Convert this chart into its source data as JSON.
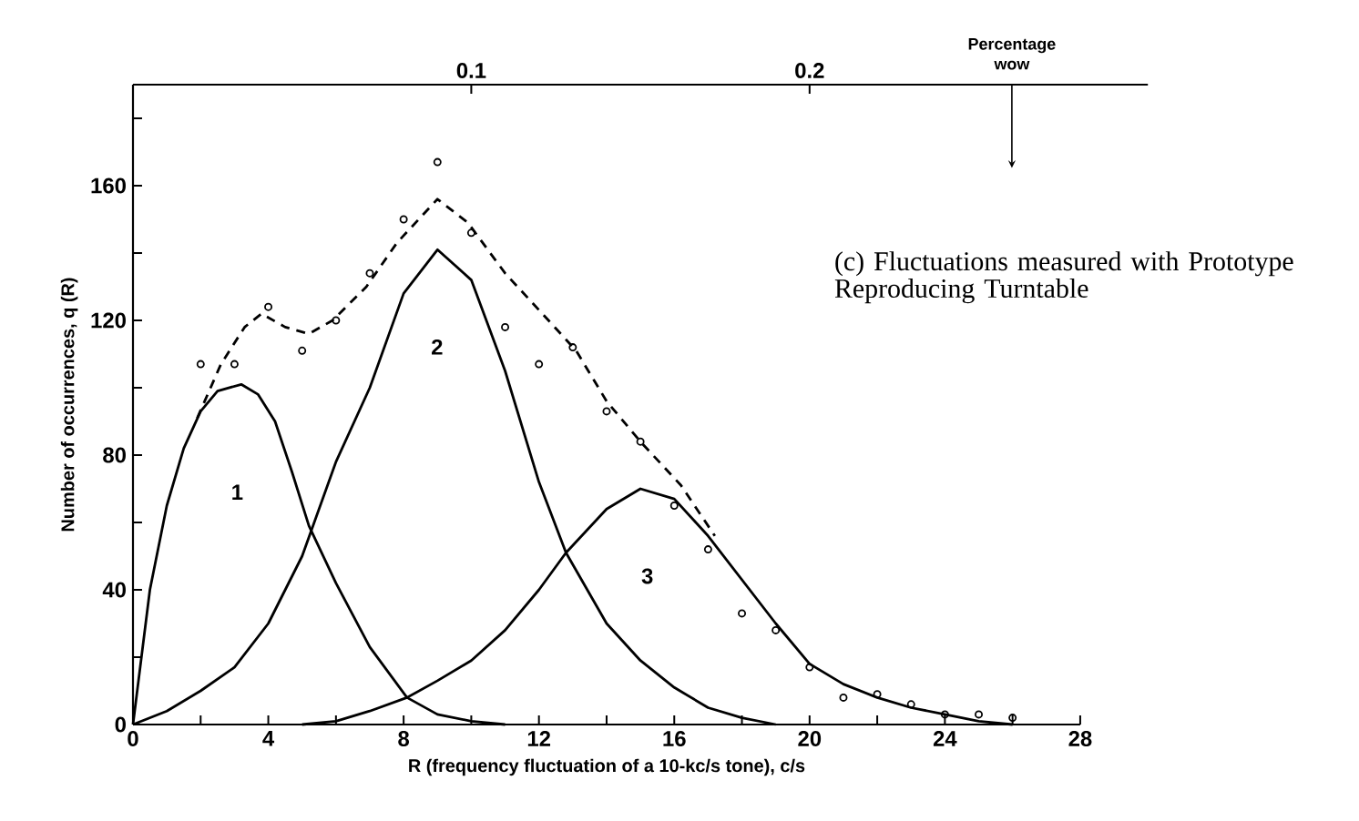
{
  "chart_data": {
    "type": "line",
    "xlabel": "R (frequency fluctuation of a 10-kc/s tone), c/s",
    "ylabel": "Number of occurrences, q (R)",
    "x2label": "Percentage wow",
    "xlim": [
      0,
      28
    ],
    "ylim": [
      0,
      190
    ],
    "x2lim": [
      0,
      0.3
    ],
    "xticks": [
      0,
      {
        "value": 2,
        "label": null
      },
      4,
      {
        "value": 6,
        "label": null
      },
      8,
      {
        "value": 10,
        "label": null
      },
      12,
      {
        "value": 14,
        "label": null
      },
      16,
      {
        "value": 18,
        "label": null
      },
      20,
      {
        "value": 22,
        "label": null
      },
      24,
      {
        "value": 26,
        "label": null
      },
      28
    ],
    "yticks": [
      0,
      {
        "value": 20,
        "label": null
      },
      40,
      {
        "value": 60,
        "label": null
      },
      80,
      {
        "value": 100,
        "label": null
      },
      120,
      {
        "value": 140,
        "label": null
      },
      160,
      {
        "value": 180,
        "label": null
      }
    ],
    "x2ticks": [
      0.1,
      0.2
    ],
    "series": [
      {
        "type": "scatter",
        "marker": "circle",
        "color": "#000000",
        "x": [
          2,
          3,
          4,
          5,
          6,
          7,
          8,
          9,
          10,
          11,
          12,
          13,
          14,
          15,
          16,
          17,
          18,
          19,
          20,
          21,
          22,
          23,
          24,
          25,
          26
        ],
        "values": [
          107,
          107,
          124,
          111,
          120,
          134,
          150,
          167,
          146,
          118,
          107,
          112,
          93,
          84,
          65,
          52,
          33,
          28,
          17,
          8,
          9,
          6,
          3,
          3,
          2
        ]
      },
      {
        "line_style": "dashed",
        "color": "#000000",
        "x": [
          1.9,
          2.6,
          3.3,
          3.8,
          4.5,
          5.2,
          5.9,
          6.9,
          7.8,
          9.0,
          9.9,
          11.0,
          12.1,
          13.1,
          14.0,
          15.0,
          16.2,
          17.2
        ],
        "values": [
          91,
          107,
          118,
          122,
          118,
          116,
          120,
          130,
          143,
          156,
          149,
          134,
          122,
          111,
          96,
          84,
          71,
          56
        ]
      },
      {
        "line_style": "solid",
        "color": "#000000",
        "x": [
          0,
          0.5,
          1,
          1.5,
          2,
          2.5,
          3.2,
          3.7,
          4.2,
          4.7,
          5.2,
          6,
          7,
          8.1,
          9,
          10,
          11
        ],
        "values": [
          0,
          40,
          65,
          82,
          93,
          99,
          101,
          98,
          90,
          75,
          59,
          42,
          23,
          8,
          3,
          1,
          0
        ]
      },
      {
        "line_style": "solid",
        "color": "#000000",
        "x": [
          0,
          1,
          2,
          3,
          4,
          5,
          6,
          7,
          8,
          9,
          10,
          11,
          12,
          12.8,
          14,
          15,
          16,
          17,
          18,
          19
        ],
        "values": [
          0,
          4,
          10,
          17,
          30,
          50,
          78,
          100,
          128,
          141,
          132,
          105,
          72,
          51,
          30,
          19,
          11,
          5,
          2,
          0
        ]
      },
      {
        "line_style": "solid",
        "color": "#000000",
        "x": [
          5,
          6,
          7,
          8.1,
          9,
          10,
          11,
          12,
          12.8,
          14,
          15,
          16,
          17,
          18,
          19,
          20,
          21,
          22,
          23,
          24,
          25,
          26
        ],
        "values": [
          0,
          1,
          4,
          8,
          13,
          19,
          28,
          40,
          51,
          64,
          70,
          67,
          56,
          43,
          30,
          18,
          12,
          8,
          5,
          3,
          1,
          0
        ]
      }
    ],
    "annotations": [
      "1",
      "2",
      "3",
      "(c) Fluctuations measured with Prototype Reproducing Turntable"
    ]
  }
}
